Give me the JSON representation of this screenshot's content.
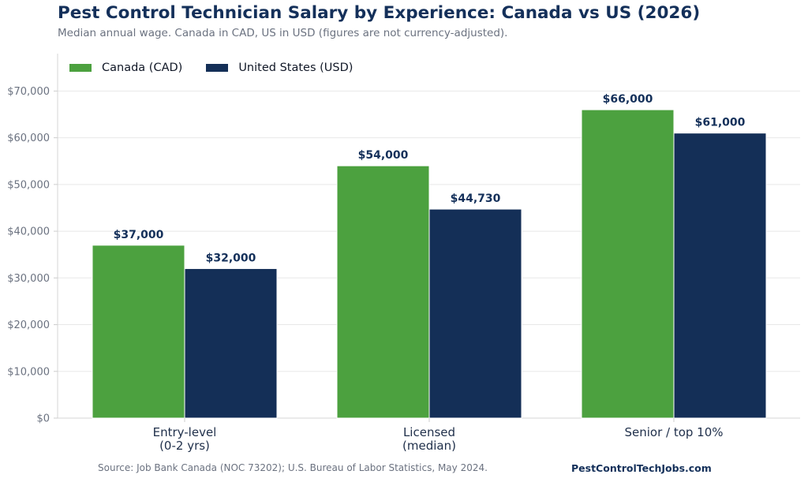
{
  "header": {
    "title": "Pest Control Technician Salary by Experience: Canada vs US (2026)",
    "subtitle": "Median annual wage. Canada in CAD, US in USD (figures are not currency-adjusted)."
  },
  "footer": {
    "source": "Source: Job Bank Canada (NOC 73202); U.S. Bureau of Labor Statistics, May 2024.",
    "brand": "PestControlTechJobs.com"
  },
  "chart_data": {
    "type": "bar",
    "title": "Pest Control Technician Salary by Experience: Canada vs US (2026)",
    "subtitle": "Median annual wage. Canada in CAD, US in USD (figures are not currency-adjusted).",
    "xlabel": "",
    "ylabel": "",
    "categories": [
      [
        "Entry-level",
        "(0-2 yrs)"
      ],
      [
        "Licensed",
        "(median)"
      ],
      [
        "Senior / top 10%"
      ]
    ],
    "series": [
      {
        "name": "Canada (CAD)",
        "color": "#4ca13f",
        "values": [
          37000,
          54000,
          66000
        ],
        "labels": [
          "$37,000",
          "$54,000",
          "$66,000"
        ]
      },
      {
        "name": "United States (USD)",
        "color": "#142f57",
        "values": [
          32000,
          44730,
          61000
        ],
        "labels": [
          "$32,000",
          "$44,730",
          "$61,000"
        ]
      }
    ],
    "yticks": [
      0,
      10000,
      20000,
      30000,
      40000,
      50000,
      60000,
      70000
    ],
    "ytick_labels": [
      "$0",
      "$10,000",
      "$20,000",
      "$30,000",
      "$40,000",
      "$50,000",
      "$60,000",
      "$70,000"
    ],
    "ylim": [
      0,
      78000
    ],
    "grid": "horizontal",
    "legend_position": "top-left"
  }
}
